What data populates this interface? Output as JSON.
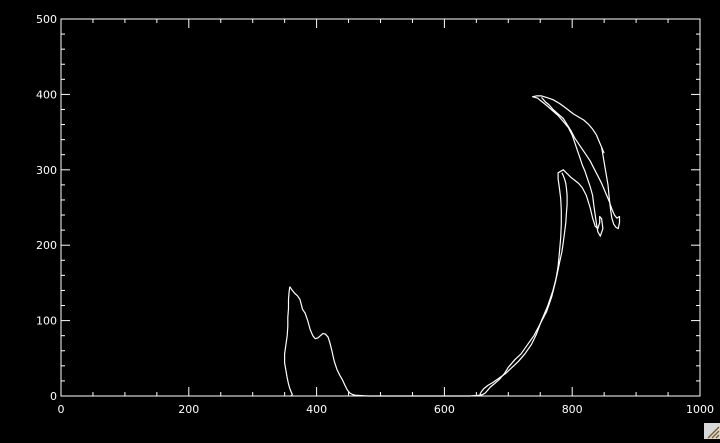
{
  "chart_data": {
    "type": "line",
    "title": "",
    "xlabel": "",
    "ylabel": "",
    "xlim": [
      0,
      1000
    ],
    "ylim": [
      0,
      500
    ],
    "x_ticks": [
      0,
      200,
      400,
      600,
      800,
      1000
    ],
    "y_ticks": [
      0,
      100,
      200,
      300,
      400,
      500
    ],
    "x_minor_step": 50,
    "y_minor_step": 20,
    "grid": false,
    "legend": "none",
    "background_color": "#000000",
    "foreground_color": "#ffffff",
    "series": [
      {
        "kind": "closed-contour",
        "points": [
          [
            358,
            145
          ],
          [
            362,
            140
          ],
          [
            366,
            136
          ],
          [
            370,
            133
          ],
          [
            374,
            128
          ],
          [
            378,
            115
          ],
          [
            382,
            110
          ],
          [
            386,
            100
          ],
          [
            390,
            88
          ],
          [
            394,
            80
          ],
          [
            398,
            76
          ],
          [
            402,
            77
          ],
          [
            406,
            80
          ],
          [
            410,
            83
          ],
          [
            414,
            82
          ],
          [
            418,
            78
          ],
          [
            421,
            70
          ],
          [
            424,
            60
          ],
          [
            426,
            52
          ],
          [
            428,
            45
          ],
          [
            432,
            35
          ],
          [
            436,
            28
          ],
          [
            440,
            22
          ],
          [
            444,
            15
          ],
          [
            448,
            8
          ],
          [
            452,
            4
          ],
          [
            456,
            2
          ],
          [
            460,
            1
          ],
          [
            480,
            0
          ],
          [
            520,
            0
          ],
          [
            560,
            0
          ],
          [
            600,
            0
          ],
          [
            640,
            0
          ],
          [
            656,
            1
          ],
          [
            660,
            2
          ],
          [
            664,
            4
          ],
          [
            668,
            8
          ],
          [
            672,
            12
          ],
          [
            678,
            16
          ],
          [
            686,
            22
          ],
          [
            694,
            30
          ],
          [
            700,
            38
          ],
          [
            710,
            48
          ],
          [
            720,
            56
          ],
          [
            730,
            68
          ],
          [
            740,
            80
          ],
          [
            750,
            96
          ],
          [
            760,
            112
          ],
          [
            768,
            132
          ],
          [
            774,
            152
          ],
          [
            778,
            172
          ],
          [
            780,
            190
          ],
          [
            782,
            210
          ],
          [
            783,
            228
          ],
          [
            783,
            246
          ],
          [
            782,
            262
          ],
          [
            780,
            276
          ],
          [
            778,
            288
          ],
          [
            778,
            296
          ],
          [
            782,
            298
          ],
          [
            786,
            300
          ],
          [
            792,
            295
          ],
          [
            798,
            290
          ],
          [
            804,
            286
          ],
          [
            810,
            282
          ],
          [
            816,
            276
          ],
          [
            822,
            266
          ],
          [
            828,
            250
          ],
          [
            832,
            236
          ],
          [
            836,
            225
          ],
          [
            840,
            222
          ],
          [
            843,
            230
          ],
          [
            843,
            238
          ],
          [
            846,
            235
          ],
          [
            848,
            222
          ],
          [
            844,
            212
          ],
          [
            840,
            218
          ],
          [
            838,
            228
          ],
          [
            836,
            240
          ],
          [
            834,
            252
          ],
          [
            832,
            266
          ],
          [
            828,
            278
          ],
          [
            824,
            288
          ],
          [
            820,
            298
          ],
          [
            816,
            306
          ],
          [
            812,
            316
          ],
          [
            808,
            326
          ],
          [
            804,
            336
          ],
          [
            800,
            346
          ],
          [
            794,
            356
          ],
          [
            786,
            364
          ],
          [
            778,
            372
          ],
          [
            770,
            378
          ],
          [
            762,
            384
          ],
          [
            756,
            388
          ],
          [
            750,
            392
          ],
          [
            746,
            395
          ],
          [
            742,
            396
          ],
          [
            738,
            397
          ],
          [
            744,
            398
          ],
          [
            752,
            398
          ],
          [
            760,
            396
          ],
          [
            770,
            393
          ],
          [
            780,
            388
          ],
          [
            790,
            382
          ],
          [
            796,
            378
          ],
          [
            802,
            374
          ],
          [
            810,
            370
          ],
          [
            818,
            366
          ],
          [
            826,
            360
          ],
          [
            832,
            354
          ],
          [
            838,
            346
          ],
          [
            842,
            338
          ],
          [
            846,
            330
          ],
          [
            850,
            322
          ]
        ]
      },
      {
        "kind": "contour",
        "points": [
          [
            360,
            0
          ],
          [
            362,
            2
          ],
          [
            360,
            6
          ],
          [
            358,
            10
          ],
          [
            356,
            16
          ],
          [
            354,
            24
          ],
          [
            352,
            34
          ],
          [
            350,
            44
          ],
          [
            350,
            56
          ],
          [
            352,
            68
          ],
          [
            354,
            80
          ],
          [
            355,
            92
          ],
          [
            355,
            104
          ],
          [
            356,
            116
          ],
          [
            356,
            128
          ],
          [
            357,
            138
          ],
          [
            358,
            145
          ]
        ]
      },
      {
        "kind": "contour",
        "points": [
          [
            784,
            296
          ],
          [
            786,
            292
          ],
          [
            788,
            288
          ],
          [
            790,
            282
          ],
          [
            791,
            276
          ],
          [
            792,
            266
          ],
          [
            792,
            254
          ],
          [
            791,
            242
          ],
          [
            790,
            230
          ],
          [
            788,
            216
          ],
          [
            786,
            204
          ],
          [
            784,
            192
          ],
          [
            780,
            176
          ],
          [
            776,
            160
          ],
          [
            770,
            140
          ],
          [
            762,
            120
          ],
          [
            752,
            100
          ],
          [
            744,
            82
          ],
          [
            736,
            68
          ],
          [
            726,
            56
          ],
          [
            716,
            46
          ],
          [
            706,
            38
          ],
          [
            696,
            30
          ],
          [
            686,
            24
          ],
          [
            676,
            18
          ],
          [
            668,
            14
          ],
          [
            662,
            10
          ],
          [
            658,
            6
          ],
          [
            656,
            3
          ],
          [
            656,
            1
          ]
        ]
      },
      {
        "kind": "contour",
        "points": [
          [
            846,
            330
          ],
          [
            852,
            300
          ],
          [
            856,
            280
          ],
          [
            858,
            262
          ],
          [
            860,
            248
          ],
          [
            862,
            236
          ],
          [
            865,
            228
          ],
          [
            868,
            224
          ],
          [
            872,
            222
          ],
          [
            874,
            230
          ],
          [
            874,
            238
          ],
          [
            870,
            236
          ],
          [
            866,
            240
          ],
          [
            862,
            248
          ],
          [
            858,
            258
          ],
          [
            852,
            270
          ],
          [
            846,
            282
          ],
          [
            840,
            292
          ],
          [
            834,
            302
          ],
          [
            828,
            312
          ],
          [
            820,
            322
          ],
          [
            812,
            332
          ],
          [
            804,
            342
          ],
          [
            798,
            352
          ],
          [
            792,
            360
          ],
          [
            786,
            368
          ],
          [
            778,
            374
          ],
          [
            770,
            380
          ],
          [
            764,
            386
          ],
          [
            758,
            390
          ],
          [
            754,
            394
          ],
          [
            752,
            396
          ]
        ]
      }
    ]
  }
}
